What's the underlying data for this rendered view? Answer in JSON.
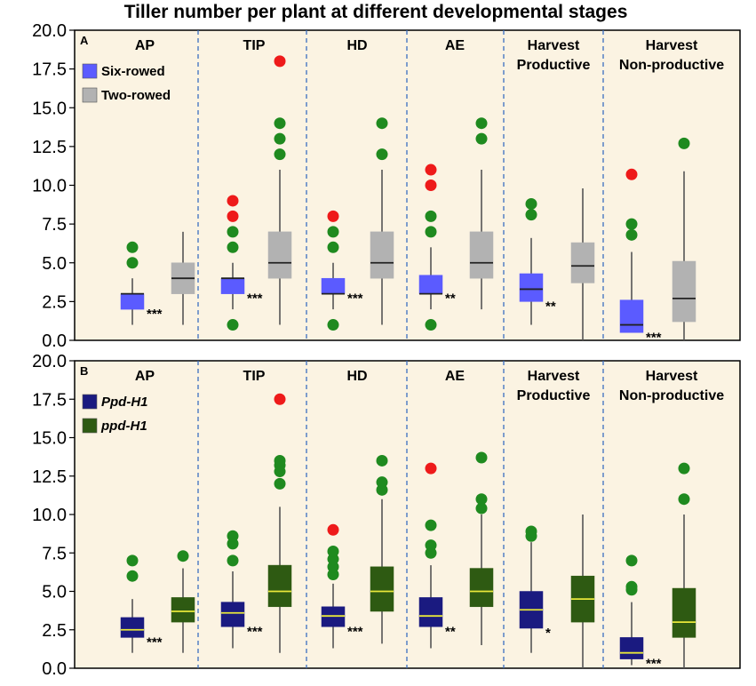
{
  "title": "Tiller number per plant at different developmental stages",
  "colors": {
    "panel_bg": "#fbf3e2",
    "divider": "#3a6fc0",
    "outlier_green": "#1f8a1f",
    "outlier_red": "#ee1a1a",
    "whisker": "#555555",
    "six_rowed": "#5b5bff",
    "two_rowed": "#b2b2b2",
    "ppd_H1": "#1a1a80",
    "ppd_h1": "#2e5a12",
    "median_dark": "#222222",
    "median_yellow": "#e8e83a"
  },
  "chart_data": [
    {
      "type": "box",
      "panel_label": "A",
      "ylim": [
        0,
        20
      ],
      "yticks": [
        "0.0",
        "2.5",
        "5.0",
        "7.5",
        "10.0",
        "12.5",
        "15.0",
        "17.5",
        "20.0"
      ],
      "stages": [
        "AP",
        "TIP",
        "HD",
        "AE",
        "Harvest\nProductive",
        "Harvest\nNon-productive"
      ],
      "legend": [
        {
          "name": "Six-rowed",
          "color": "#5b5bff"
        },
        {
          "name": "Two-rowed",
          "color": "#b2b2b2"
        }
      ],
      "median_color": "#222222",
      "groups": [
        {
          "stage": "AP",
          "significance": "***",
          "boxes": [
            {
              "series": "Six-rowed",
              "min": 1,
              "q1": 2,
              "median": 3,
              "q3": 3,
              "max": 4,
              "outliers": [
                {
                  "v": 5,
                  "c": "green"
                },
                {
                  "v": 6,
                  "c": "green"
                }
              ]
            },
            {
              "series": "Two-rowed",
              "min": 1,
              "q1": 3,
              "median": 4,
              "q3": 5,
              "max": 7,
              "outliers": []
            }
          ]
        },
        {
          "stage": "TIP",
          "significance": "***",
          "boxes": [
            {
              "series": "Six-rowed",
              "min": 2,
              "q1": 3,
              "median": 4,
              "q3": 4,
              "max": 5,
              "outliers": [
                {
                  "v": 1,
                  "c": "green"
                },
                {
                  "v": 6,
                  "c": "green"
                },
                {
                  "v": 7,
                  "c": "green"
                },
                {
                  "v": 8,
                  "c": "red"
                },
                {
                  "v": 9,
                  "c": "red"
                }
              ]
            },
            {
              "series": "Two-rowed",
              "min": 1,
              "q1": 4,
              "median": 5,
              "q3": 7,
              "max": 11,
              "outliers": [
                {
                  "v": 12,
                  "c": "green"
                },
                {
                  "v": 13,
                  "c": "green"
                },
                {
                  "v": 14,
                  "c": "green"
                },
                {
                  "v": 18,
                  "c": "red"
                }
              ]
            }
          ]
        },
        {
          "stage": "HD",
          "significance": "***",
          "boxes": [
            {
              "series": "Six-rowed",
              "min": 2,
              "q1": 3,
              "median": 3,
              "q3": 4,
              "max": 5,
              "outliers": [
                {
                  "v": 1,
                  "c": "green"
                },
                {
                  "v": 6,
                  "c": "green"
                },
                {
                  "v": 7,
                  "c": "green"
                },
                {
                  "v": 8,
                  "c": "red"
                }
              ]
            },
            {
              "series": "Two-rowed",
              "min": 1,
              "q1": 4,
              "median": 5,
              "q3": 7,
              "max": 11,
              "outliers": [
                {
                  "v": 12,
                  "c": "green"
                },
                {
                  "v": 14,
                  "c": "green"
                }
              ]
            }
          ]
        },
        {
          "stage": "AE",
          "significance": "**",
          "boxes": [
            {
              "series": "Six-rowed",
              "min": 2,
              "q1": 3,
              "median": 3,
              "q3": 4.2,
              "max": 6,
              "outliers": [
                {
                  "v": 1,
                  "c": "green"
                },
                {
                  "v": 7,
                  "c": "green"
                },
                {
                  "v": 8,
                  "c": "green"
                },
                {
                  "v": 10,
                  "c": "red"
                },
                {
                  "v": 11,
                  "c": "red"
                }
              ]
            },
            {
              "series": "Two-rowed",
              "min": 2,
              "q1": 4,
              "median": 5,
              "q3": 7,
              "max": 11,
              "outliers": [
                {
                  "v": 13,
                  "c": "green"
                },
                {
                  "v": 14,
                  "c": "green"
                }
              ]
            }
          ]
        },
        {
          "stage": "Harvest Productive",
          "significance": "**",
          "boxes": [
            {
              "series": "Six-rowed",
              "min": 1,
              "q1": 2.5,
              "median": 3.3,
              "q3": 4.3,
              "max": 6.6,
              "outliers": [
                {
                  "v": 8.1,
                  "c": "green"
                },
                {
                  "v": 8.8,
                  "c": "green"
                }
              ]
            },
            {
              "series": "Two-rowed",
              "min": 0,
              "q1": 3.7,
              "median": 4.8,
              "q3": 6.3,
              "max": 9.8,
              "outliers": []
            }
          ]
        },
        {
          "stage": "Harvest Non-productive",
          "significance": "***",
          "boxes": [
            {
              "series": "Six-rowed",
              "min": 0.5,
              "q1": 0.5,
              "median": 1,
              "q3": 2.6,
              "max": 5.7,
              "outliers": [
                {
                  "v": 6.8,
                  "c": "green"
                },
                {
                  "v": 7.5,
                  "c": "green"
                },
                {
                  "v": 10.7,
                  "c": "red"
                }
              ]
            },
            {
              "series": "Two-rowed",
              "min": 0,
              "q1": 1.2,
              "median": 2.7,
              "q3": 5.1,
              "max": 10.9,
              "outliers": [
                {
                  "v": 12.7,
                  "c": "green"
                }
              ]
            }
          ]
        }
      ]
    },
    {
      "type": "box",
      "panel_label": "B",
      "ylim": [
        0,
        20
      ],
      "yticks": [
        "0.0",
        "2.5",
        "5.0",
        "7.5",
        "10.0",
        "12.5",
        "15.0",
        "17.5",
        "20.0"
      ],
      "stages": [
        "AP",
        "TIP",
        "HD",
        "AE",
        "Harvest\nProductive",
        "Harvest\nNon-productive"
      ],
      "legend": [
        {
          "name": "Ppd-H1",
          "color": "#1a1a80"
        },
        {
          "name": "ppd-H1",
          "color": "#2e5a12"
        }
      ],
      "median_color": "#e8e83a",
      "groups": [
        {
          "stage": "AP",
          "significance": "***",
          "boxes": [
            {
              "series": "Ppd-H1",
              "min": 1,
              "q1": 2,
              "median": 2.5,
              "q3": 3.3,
              "max": 4.5,
              "outliers": [
                {
                  "v": 6,
                  "c": "green"
                },
                {
                  "v": 7,
                  "c": "green"
                }
              ]
            },
            {
              "series": "ppd-H1",
              "min": 1,
              "q1": 3,
              "median": 3.7,
              "q3": 4.6,
              "max": 6.5,
              "outliers": [
                {
                  "v": 7.3,
                  "c": "green"
                }
              ]
            }
          ]
        },
        {
          "stage": "TIP",
          "significance": "***",
          "boxes": [
            {
              "series": "Ppd-H1",
              "min": 1.3,
              "q1": 2.7,
              "median": 3.6,
              "q3": 4.3,
              "max": 6.3,
              "outliers": [
                {
                  "v": 7,
                  "c": "green"
                },
                {
                  "v": 8.1,
                  "c": "green"
                },
                {
                  "v": 8.6,
                  "c": "green"
                }
              ]
            },
            {
              "series": "ppd-H1",
              "min": 1,
              "q1": 4,
              "median": 5,
              "q3": 6.7,
              "max": 10.5,
              "outliers": [
                {
                  "v": 12,
                  "c": "green"
                },
                {
                  "v": 12.8,
                  "c": "green"
                },
                {
                  "v": 13.2,
                  "c": "green"
                },
                {
                  "v": 13.5,
                  "c": "green"
                },
                {
                  "v": 17.5,
                  "c": "red"
                }
              ]
            }
          ]
        },
        {
          "stage": "HD",
          "significance": "***",
          "boxes": [
            {
              "series": "Ppd-H1",
              "min": 1.3,
              "q1": 2.7,
              "median": 3.4,
              "q3": 4,
              "max": 5.5,
              "outliers": [
                {
                  "v": 6.1,
                  "c": "green"
                },
                {
                  "v": 6.6,
                  "c": "green"
                },
                {
                  "v": 7.1,
                  "c": "green"
                },
                {
                  "v": 7.6,
                  "c": "green"
                },
                {
                  "v": 9,
                  "c": "red"
                }
              ]
            },
            {
              "series": "ppd-H1",
              "min": 1.6,
              "q1": 3.7,
              "median": 5,
              "q3": 6.6,
              "max": 11,
              "outliers": [
                {
                  "v": 11.6,
                  "c": "green"
                },
                {
                  "v": 12.1,
                  "c": "green"
                },
                {
                  "v": 13.5,
                  "c": "green"
                }
              ]
            }
          ]
        },
        {
          "stage": "AE",
          "significance": "**",
          "boxes": [
            {
              "series": "Ppd-H1",
              "min": 1.3,
              "q1": 2.7,
              "median": 3.4,
              "q3": 4.6,
              "max": 6.7,
              "outliers": [
                {
                  "v": 7.5,
                  "c": "green"
                },
                {
                  "v": 8,
                  "c": "green"
                },
                {
                  "v": 9.3,
                  "c": "green"
                },
                {
                  "v": 13,
                  "c": "red"
                }
              ]
            },
            {
              "series": "ppd-H1",
              "min": 1.5,
              "q1": 4,
              "median": 5,
              "q3": 6.5,
              "max": 10,
              "outliers": [
                {
                  "v": 10.4,
                  "c": "green"
                },
                {
                  "v": 11,
                  "c": "green"
                },
                {
                  "v": 13.7,
                  "c": "green"
                }
              ]
            }
          ]
        },
        {
          "stage": "Harvest Productive",
          "significance": "*",
          "boxes": [
            {
              "series": "Ppd-H1",
              "min": 1,
              "q1": 2.6,
              "median": 3.8,
              "q3": 5,
              "max": 8.2,
              "outliers": [
                {
                  "v": 8.6,
                  "c": "green"
                },
                {
                  "v": 8.9,
                  "c": "green"
                }
              ]
            },
            {
              "series": "ppd-H1",
              "min": 0,
              "q1": 3,
              "median": 4.5,
              "q3": 6,
              "max": 10,
              "outliers": []
            }
          ]
        },
        {
          "stage": "Harvest Non-productive",
          "significance": "***",
          "boxes": [
            {
              "series": "Ppd-H1",
              "min": 0.2,
              "q1": 0.6,
              "median": 1,
              "q3": 2,
              "max": 4.3,
              "outliers": [
                {
                  "v": 5.1,
                  "c": "green"
                },
                {
                  "v": 5.3,
                  "c": "green"
                },
                {
                  "v": 7,
                  "c": "green"
                }
              ]
            },
            {
              "series": "ppd-H1",
              "min": 0,
              "q1": 2,
              "median": 3,
              "q3": 5.2,
              "max": 10,
              "outliers": [
                {
                  "v": 11,
                  "c": "green"
                },
                {
                  "v": 13,
                  "c": "green"
                }
              ]
            }
          ]
        }
      ]
    }
  ]
}
